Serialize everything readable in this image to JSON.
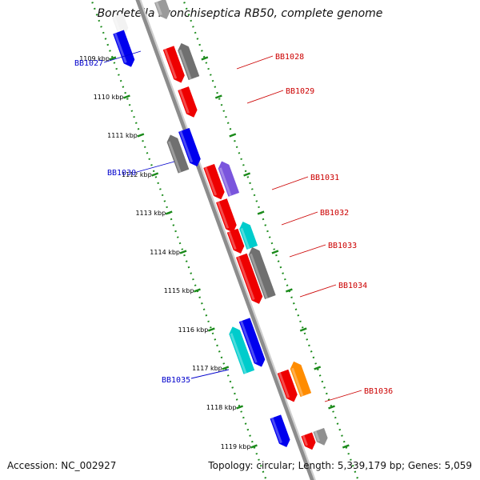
{
  "title": "Bordetella bronchiseptica RB50, complete genome",
  "footer": {
    "accession": "Accession: NC_002927",
    "summary": "Topology: circular; Length: 5,339,179 bp; Genes: 5,059"
  },
  "colors": {
    "backbone": "#8c8c8c",
    "ruler": "#1a8a1a",
    "left_labels": "#0000cc",
    "right_labels": "#cc0000"
  },
  "ruler": {
    "ticks": [
      {
        "label": "1109 kbp"
      },
      {
        "label": "1110 kbp"
      },
      {
        "label": "1111 kbp"
      },
      {
        "label": "1112 kbp"
      },
      {
        "label": "1113 kbp"
      },
      {
        "label": "1114 kbp"
      },
      {
        "label": "1115 kbp"
      },
      {
        "label": "1116 kbp"
      },
      {
        "label": "1117 kbp"
      },
      {
        "label": "1118 kbp"
      },
      {
        "label": "1119 kbp"
      }
    ]
  },
  "gene_labels": {
    "left": [
      "BB1027",
      "BB1030",
      "BB1035"
    ],
    "right": [
      "BB1028",
      "BB1029",
      "BB1031",
      "BB1032",
      "BB1033",
      "BB1034",
      "BB1036"
    ]
  }
}
